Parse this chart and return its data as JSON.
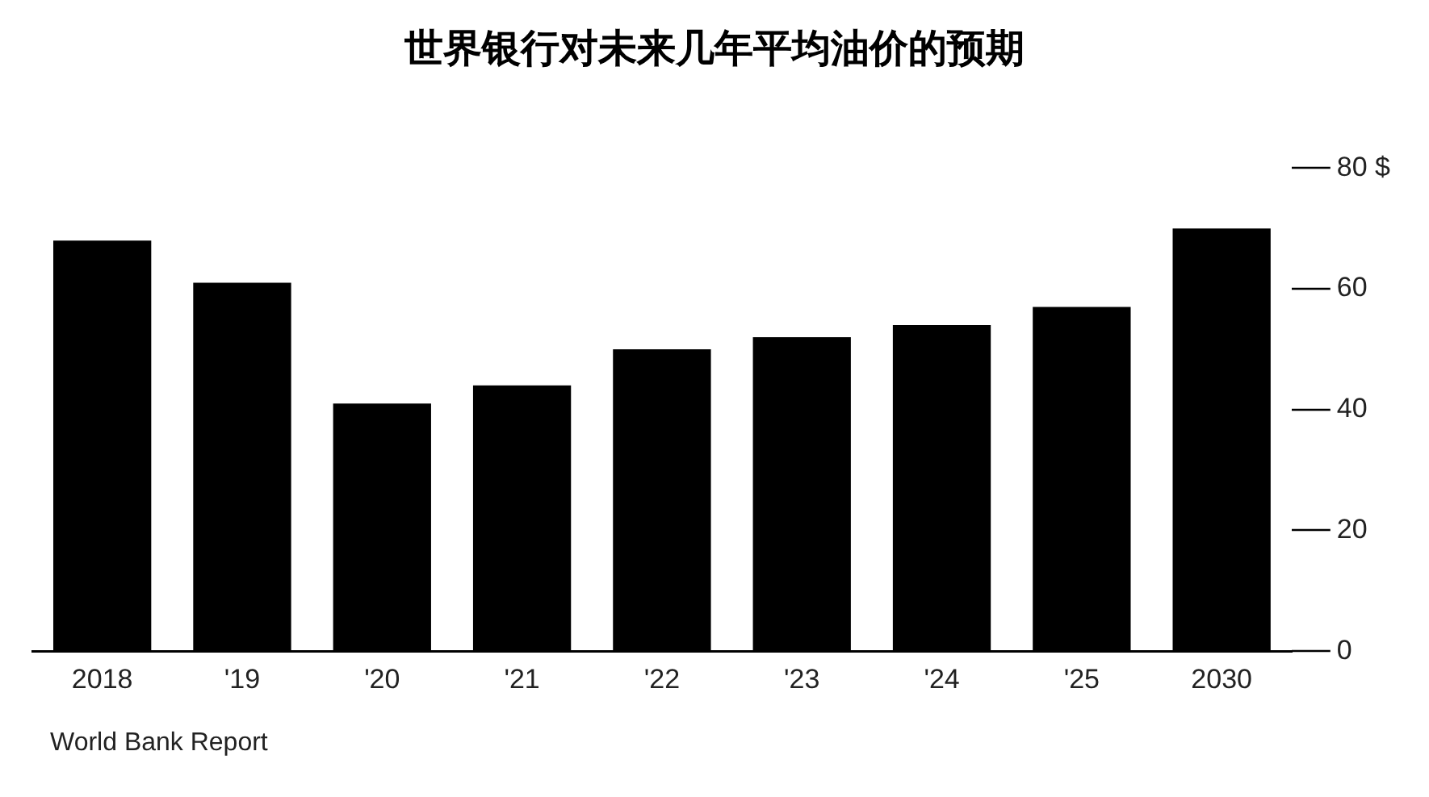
{
  "chart_data": {
    "type": "bar",
    "title": "世界银行对未来几年平均油价的预期",
    "categories": [
      "2018",
      "'19",
      "'20",
      "'21",
      "'22",
      "'23",
      "'24",
      "'25",
      "2030"
    ],
    "values": [
      68,
      61,
      41,
      44,
      50,
      52,
      54,
      57,
      70
    ],
    "color": "#000000",
    "ylim": [
      0,
      80
    ],
    "yticks": [
      0,
      20,
      40,
      60,
      {
        "value": 80,
        "label": "80 $"
      }
    ],
    "legend": false,
    "annotations": [
      "World Bank Report"
    ]
  }
}
